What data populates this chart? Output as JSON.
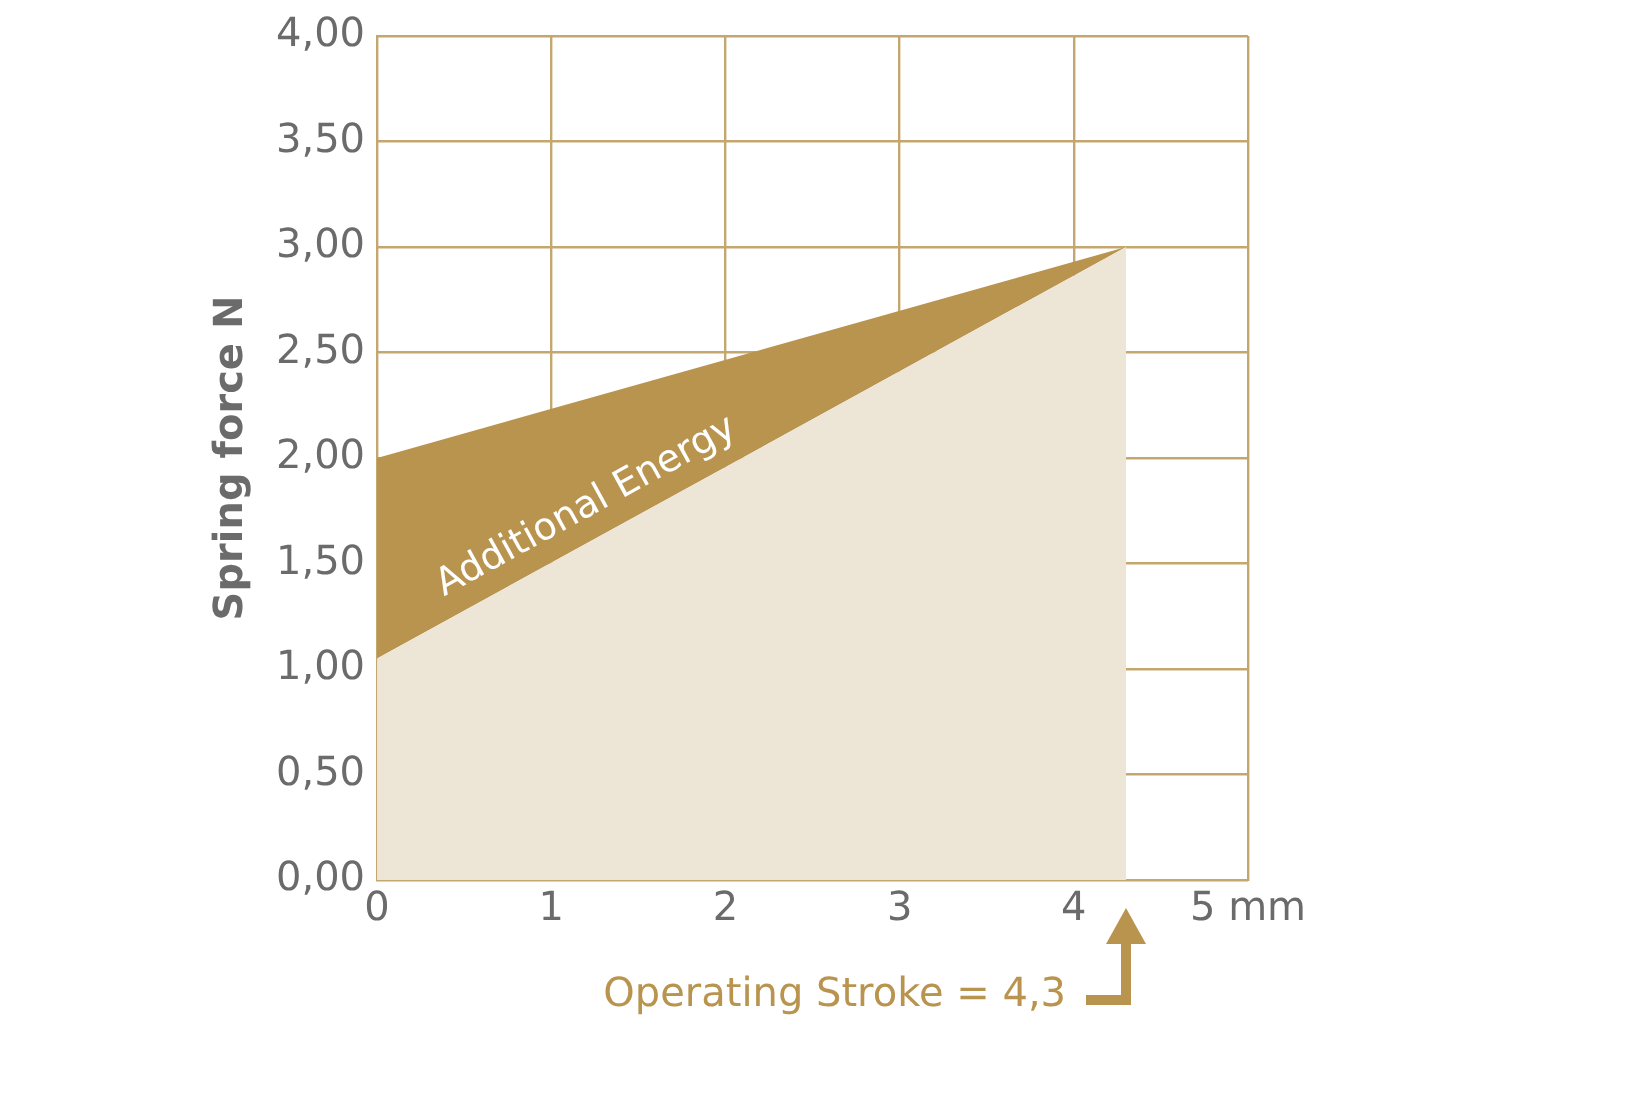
{
  "chart_data": {
    "type": "area",
    "ylabel": "Spring force N",
    "series": [
      {
        "color": "#ede5d6",
        "values": [
          1.05,
          3.0
        ]
      },
      {
        "color": "#b9944f",
        "values": [
          2.0,
          3.0
        ]
      }
    ],
    "x": [
      0,
      4.3
    ],
    "xlim": [
      0,
      5
    ],
    "xticks": [
      0,
      1,
      2,
      3,
      4,
      {
        "value": 5,
        "label": "5 mm"
      }
    ],
    "ylim": [
      0,
      4
    ],
    "yticks": [
      {
        "value": 0,
        "label": "0,00"
      },
      {
        "value": 0.5,
        "label": "0,50"
      },
      {
        "value": 1,
        "label": "1,00"
      },
      {
        "value": 1.5,
        "label": "1,50"
      },
      {
        "value": 2,
        "label": "2,00"
      },
      {
        "value": 2.5,
        "label": "2,50"
      },
      {
        "value": 3,
        "label": "3,00"
      },
      {
        "value": 3.5,
        "label": "3,50"
      },
      {
        "value": 4,
        "label": "4,00"
      }
    ],
    "grid": true,
    "legend": false,
    "annotations": [
      "Additional Energy",
      {
        "text": "Operating Stroke = 4,3",
        "x": 4.3,
        "y": 0
      }
    ]
  }
}
